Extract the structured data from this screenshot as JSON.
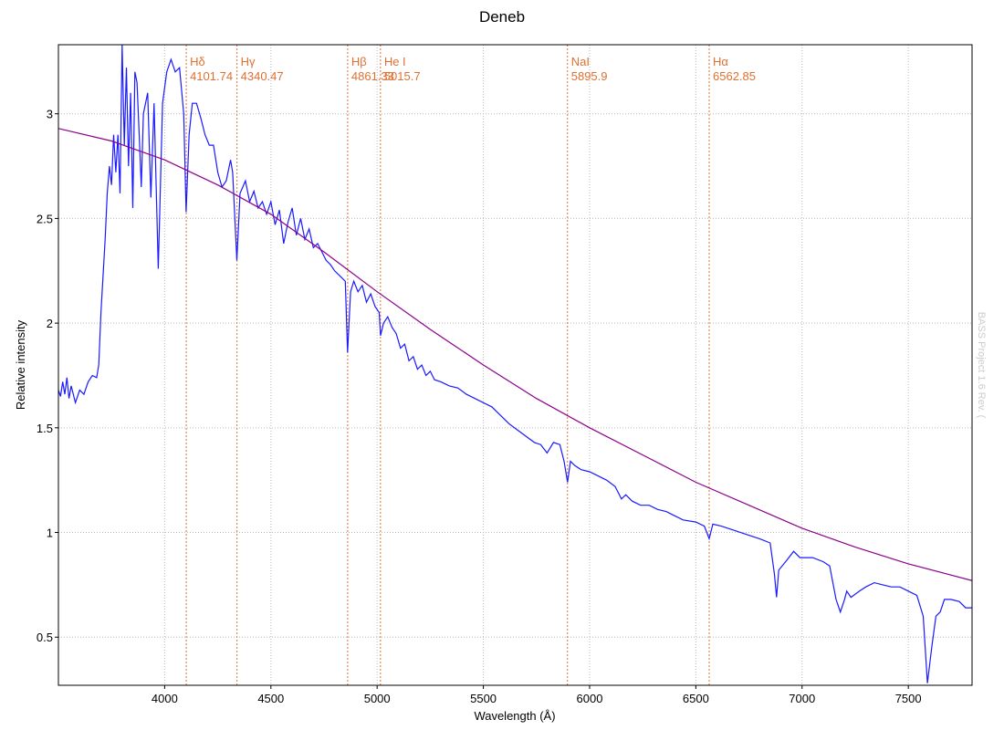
{
  "chart_data": {
    "type": "line",
    "title": "Deneb",
    "x_label": "Wavelength (Å)",
    "y_label": "Relative intensity",
    "watermark": "BASS Project 1.6 Rev. (",
    "xlim": [
      3500,
      7800
    ],
    "ylim": [
      0.27,
      3.33
    ],
    "xticks": [
      4000,
      4500,
      5000,
      5500,
      6000,
      6500,
      7000,
      7500
    ],
    "yticks": [
      0.5,
      1.0,
      1.5,
      2.0,
      2.5,
      3.0
    ],
    "grid": true,
    "series": [
      {
        "color": "#1a1aff",
        "x": [
          3500,
          3510,
          3520,
          3530,
          3540,
          3550,
          3560,
          3580,
          3600,
          3620,
          3640,
          3660,
          3680,
          3690,
          3700,
          3720,
          3730,
          3740,
          3750,
          3760,
          3770,
          3780,
          3790,
          3800,
          3810,
          3820,
          3830,
          3840,
          3850,
          3860,
          3870,
          3880,
          3890,
          3900,
          3920,
          3935,
          3950,
          3970,
          3990,
          4010,
          4030,
          4050,
          4070,
          4090,
          4101,
          4115,
          4130,
          4150,
          4170,
          4190,
          4210,
          4230,
          4250,
          4270,
          4290,
          4310,
          4320,
          4340,
          4355,
          4380,
          4400,
          4420,
          4440,
          4460,
          4480,
          4500,
          4520,
          4540,
          4560,
          4580,
          4600,
          4620,
          4640,
          4660,
          4680,
          4700,
          4720,
          4740,
          4760,
          4780,
          4800,
          4830,
          4850,
          4861,
          4875,
          4890,
          4910,
          4930,
          4950,
          4970,
          4990,
          5010,
          5016,
          5030,
          5050,
          5070,
          5090,
          5110,
          5130,
          5150,
          5170,
          5190,
          5210,
          5230,
          5250,
          5270,
          5300,
          5340,
          5380,
          5420,
          5460,
          5500,
          5540,
          5580,
          5620,
          5660,
          5700,
          5740,
          5770,
          5800,
          5830,
          5860,
          5880,
          5896,
          5910,
          5930,
          5960,
          6000,
          6040,
          6080,
          6120,
          6150,
          6170,
          6200,
          6240,
          6280,
          6320,
          6360,
          6400,
          6440,
          6500,
          6540,
          6563,
          6580,
          6620,
          6680,
          6740,
          6800,
          6850,
          6870,
          6880,
          6890,
          6930,
          6960,
          6990,
          7050,
          7100,
          7130,
          7160,
          7180,
          7200,
          7210,
          7230,
          7270,
          7300,
          7340,
          7380,
          7420,
          7460,
          7500,
          7540,
          7570,
          7590,
          7610,
          7630,
          7650,
          7670,
          7700,
          7740,
          7770,
          7800
        ],
        "values": [
          1.68,
          1.65,
          1.72,
          1.66,
          1.74,
          1.64,
          1.7,
          1.62,
          1.68,
          1.66,
          1.72,
          1.75,
          1.74,
          1.8,
          2.05,
          2.4,
          2.62,
          2.75,
          2.66,
          2.9,
          2.72,
          2.9,
          2.62,
          3.33,
          2.85,
          3.22,
          2.75,
          3.1,
          2.55,
          3.2,
          3.15,
          2.9,
          2.65,
          3.0,
          3.1,
          2.6,
          3.05,
          2.26,
          3.05,
          3.2,
          3.26,
          3.2,
          3.22,
          3.0,
          2.53,
          2.9,
          3.05,
          3.05,
          2.98,
          2.9,
          2.85,
          2.85,
          2.72,
          2.65,
          2.68,
          2.78,
          2.72,
          2.3,
          2.62,
          2.68,
          2.58,
          2.63,
          2.55,
          2.58,
          2.52,
          2.58,
          2.47,
          2.54,
          2.38,
          2.48,
          2.55,
          2.42,
          2.5,
          2.4,
          2.45,
          2.36,
          2.38,
          2.34,
          2.3,
          2.28,
          2.25,
          2.22,
          2.2,
          1.86,
          2.15,
          2.2,
          2.15,
          2.18,
          2.1,
          2.14,
          2.08,
          2.05,
          1.94,
          2.0,
          2.03,
          1.98,
          1.95,
          1.88,
          1.9,
          1.82,
          1.84,
          1.78,
          1.8,
          1.75,
          1.77,
          1.73,
          1.72,
          1.7,
          1.69,
          1.66,
          1.64,
          1.62,
          1.6,
          1.56,
          1.52,
          1.49,
          1.46,
          1.43,
          1.42,
          1.38,
          1.43,
          1.42,
          1.34,
          1.24,
          1.34,
          1.32,
          1.3,
          1.29,
          1.27,
          1.25,
          1.22,
          1.16,
          1.18,
          1.15,
          1.13,
          1.13,
          1.11,
          1.1,
          1.08,
          1.06,
          1.05,
          1.03,
          0.97,
          1.04,
          1.03,
          1.01,
          0.99,
          0.97,
          0.95,
          0.8,
          0.69,
          0.82,
          0.87,
          0.91,
          0.88,
          0.88,
          0.86,
          0.84,
          0.68,
          0.62,
          0.68,
          0.72,
          0.69,
          0.72,
          0.74,
          0.76,
          0.75,
          0.74,
          0.74,
          0.72,
          0.7,
          0.6,
          0.28,
          0.45,
          0.6,
          0.62,
          0.68,
          0.68,
          0.67,
          0.64,
          0.64
        ]
      },
      {
        "color": "#8b008b",
        "x": [
          3500,
          3750,
          4000,
          4250,
          4500,
          4750,
          5000,
          5250,
          5500,
          5750,
          6000,
          6250,
          6500,
          6750,
          7000,
          7250,
          7500,
          7650,
          7800
        ],
        "values": [
          2.93,
          2.87,
          2.78,
          2.66,
          2.52,
          2.34,
          2.15,
          1.97,
          1.8,
          1.64,
          1.5,
          1.37,
          1.24,
          1.13,
          1.02,
          0.93,
          0.85,
          0.81,
          0.77
        ]
      }
    ],
    "lines_color": "#e07030",
    "lines": [
      {
        "label": "Hδ",
        "wavelength": 4101.74
      },
      {
        "label": "Hγ",
        "wavelength": 4340.47
      },
      {
        "label": "Hβ",
        "wavelength": 4861.33
      },
      {
        "label": "He I",
        "wavelength": 5015.7
      },
      {
        "label": "NaI",
        "wavelength": 5895.9
      },
      {
        "label": "Hα",
        "wavelength": 6562.85
      }
    ]
  }
}
